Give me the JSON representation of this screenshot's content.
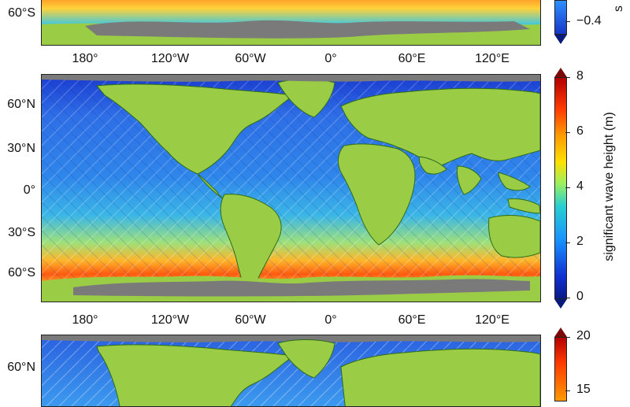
{
  "top_panel": {
    "lat_labels": [
      "60°S"
    ],
    "lon_labels": [
      "180°",
      "120°W",
      "60°W",
      "0°",
      "60°E",
      "120°E"
    ],
    "colorbar": {
      "tick_labels": [
        "−0.4"
      ],
      "title_fragment": "s"
    }
  },
  "middle_panel": {
    "lat_labels": [
      "60°N",
      "30°N",
      "0°",
      "30°S",
      "60°S"
    ],
    "lon_labels": [
      "180°",
      "120°W",
      "60°W",
      "0°",
      "60°E",
      "120°E"
    ],
    "colorbar": {
      "tick_labels": [
        "8",
        "6",
        "4",
        "2",
        "0"
      ],
      "title": "significant wave height (m)"
    }
  },
  "bottom_panel": {
    "lat_labels": [
      "60°N"
    ],
    "colorbar": {
      "tick_labels": [
        "20",
        "15"
      ]
    }
  },
  "colors": {
    "land": "#9acd45",
    "antarctica": "#7a7a7a",
    "ocean_low": "#1636c8",
    "ocean_mid": "#3aa0f0",
    "ocean_high": "#ff6a00",
    "coast": "#2f6b1a"
  }
}
